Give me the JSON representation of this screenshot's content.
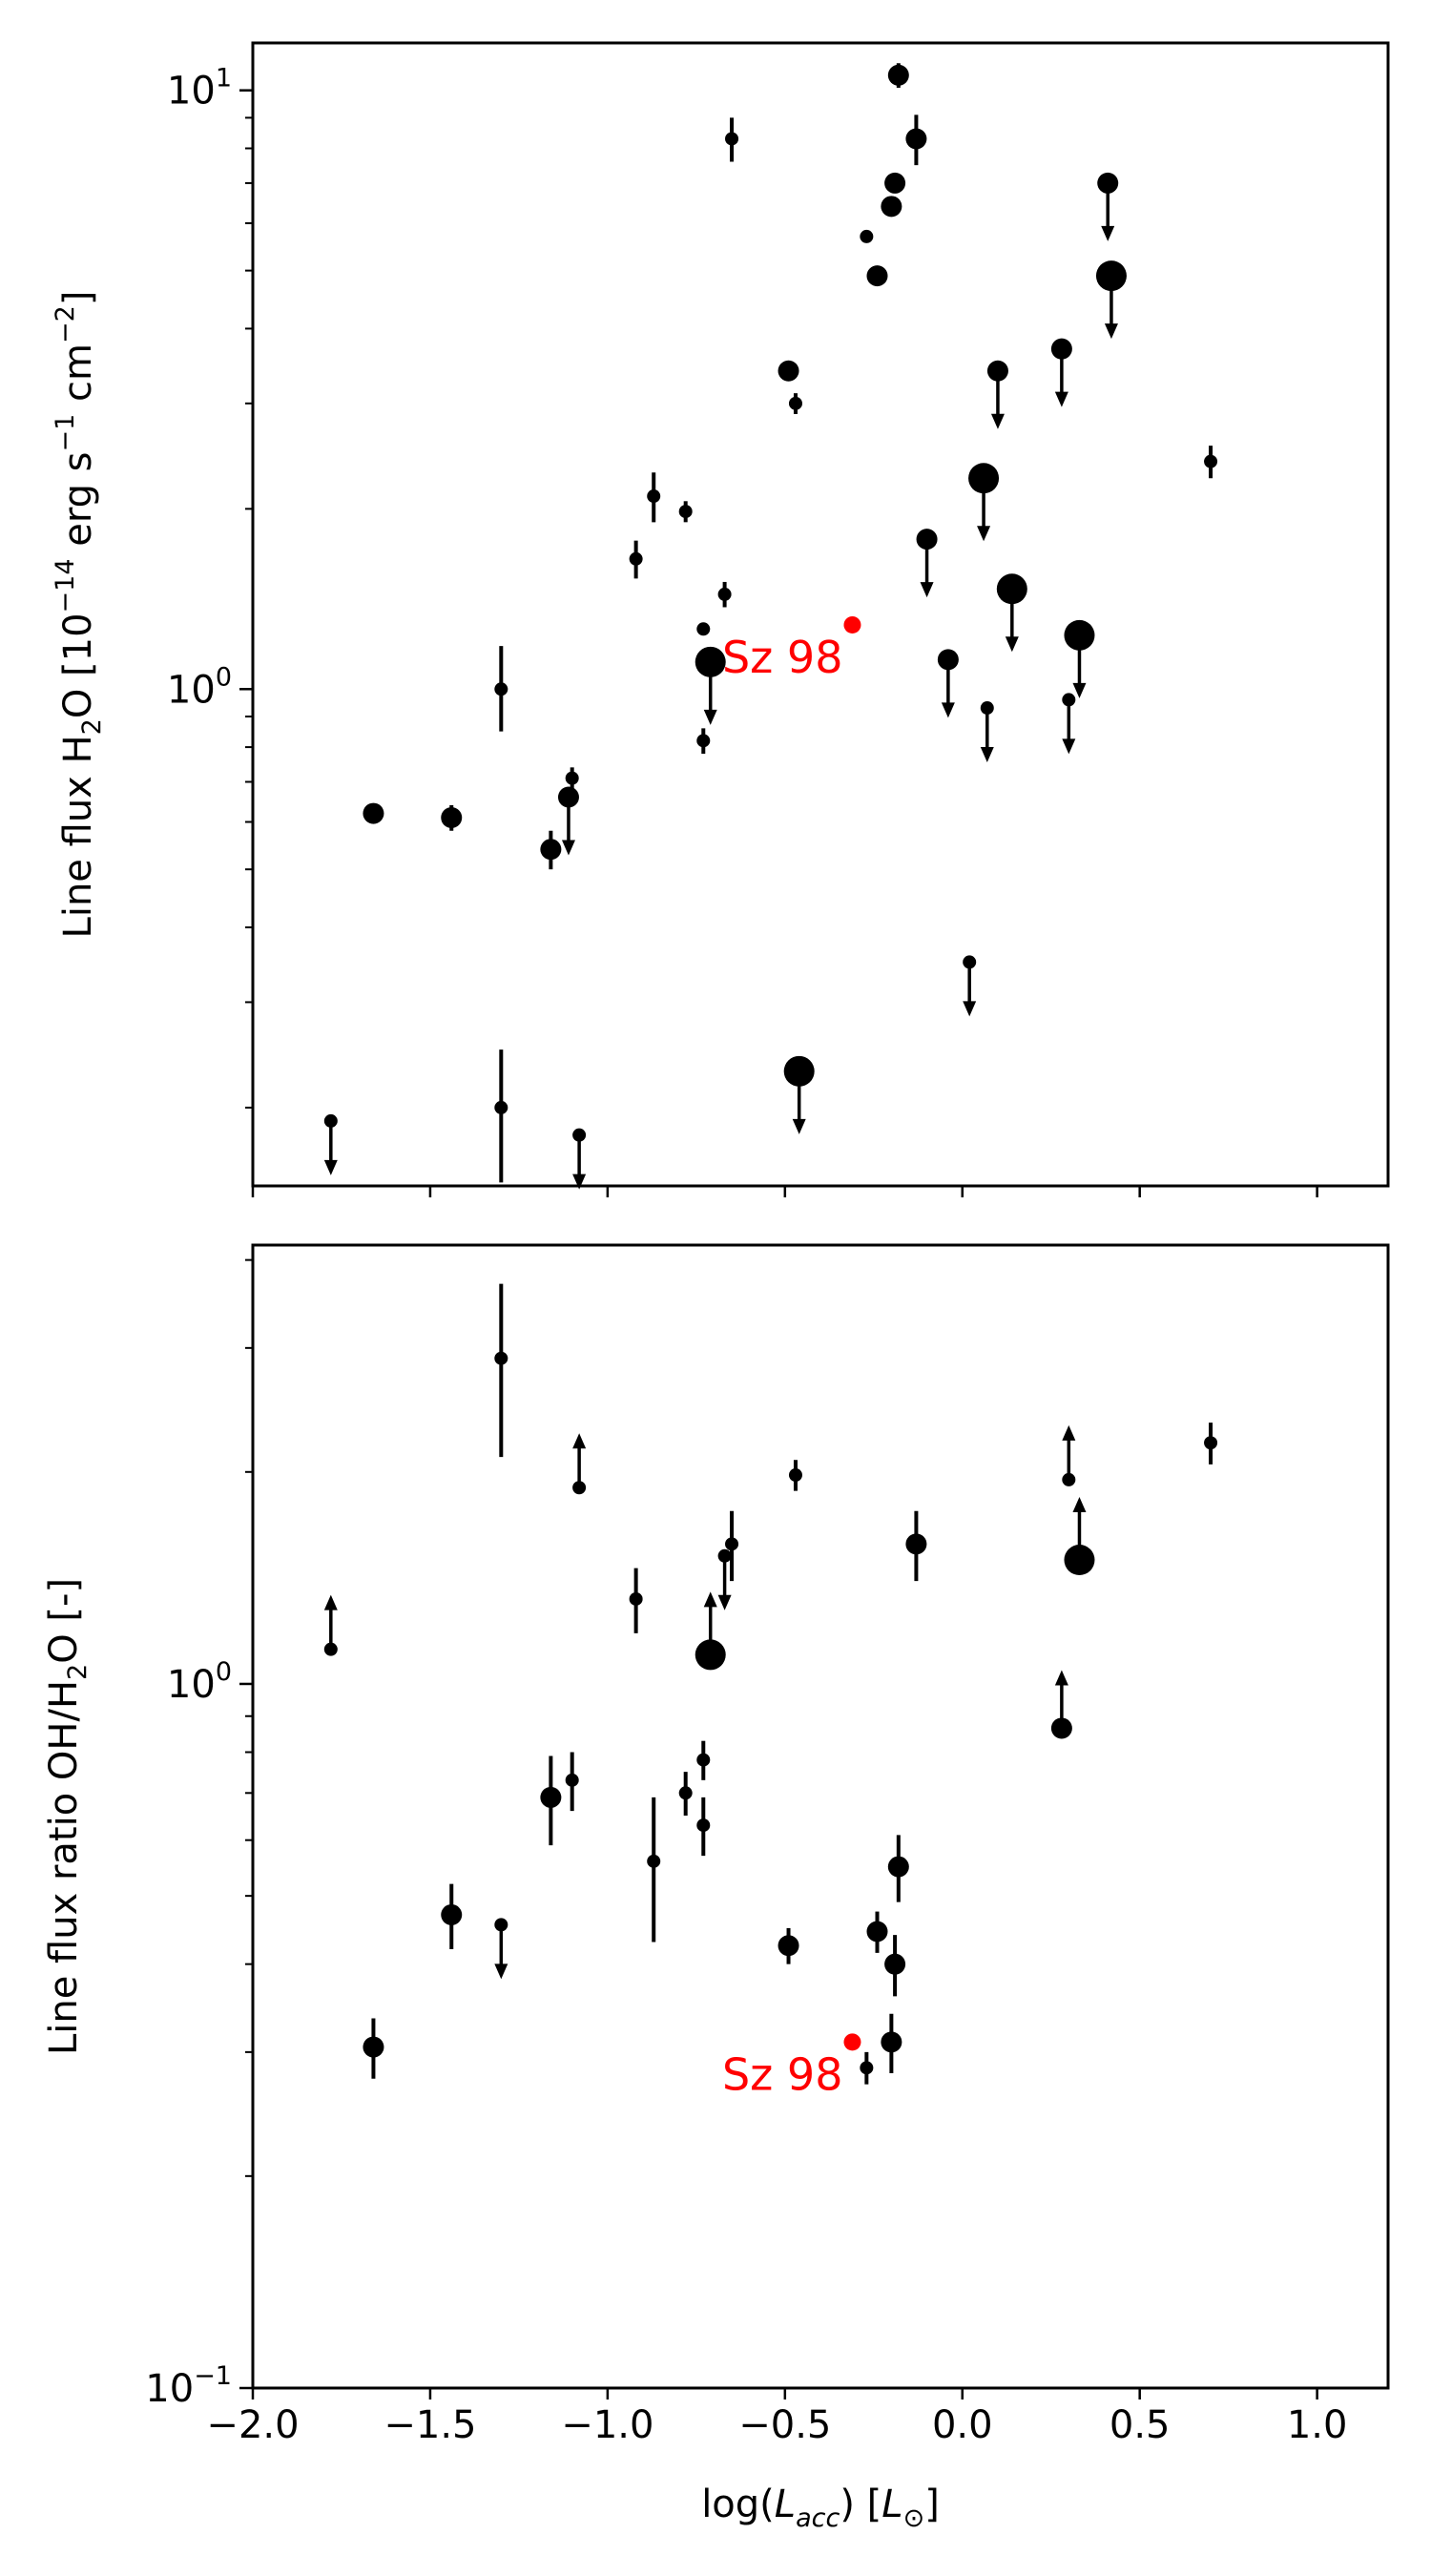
{
  "colors": {
    "points": "#000000",
    "highlight": "#ff0000"
  },
  "chart_data": [
    {
      "type": "scatter",
      "yscale": "log",
      "xlim": [
        -2.0,
        1.2
      ],
      "ylim": [
        0.148,
        12.0
      ],
      "yticks": [
        {
          "value": 1,
          "base": "10",
          "exp": "0"
        },
        {
          "value": 10,
          "base": "10",
          "exp": "1"
        }
      ],
      "ylabel": {
        "pre": "Line flux H",
        "sub": "2",
        "mid": "O [10",
        "exp": "−14",
        "rest": " erg s",
        "exp2": "−1",
        "rest2": " cm",
        "exp3": "−2",
        "post": "]"
      },
      "marker_size_encoding": "marker size varies per source",
      "points": [
        {
          "x": -1.78,
          "y": 0.19,
          "s": 1,
          "lim": "upper"
        },
        {
          "x": -1.66,
          "y": 0.62,
          "s": 2
        },
        {
          "x": -1.44,
          "y": 0.61,
          "s": 2,
          "err": [
            0.03,
            0.03
          ]
        },
        {
          "x": -1.3,
          "y": 1.0,
          "s": 1,
          "err": [
            0.15,
            0.18
          ]
        },
        {
          "x": -1.3,
          "y": 0.2,
          "s": 1,
          "err": [
            0.05,
            0.05
          ]
        },
        {
          "x": -1.16,
          "y": 0.54,
          "s": 2,
          "err": [
            0.04,
            0.04
          ]
        },
        {
          "x": -1.1,
          "y": 0.71,
          "s": 1,
          "err": [
            0.03,
            0.03
          ]
        },
        {
          "x": -1.11,
          "y": 0.66,
          "s": 2,
          "lim": "upper"
        },
        {
          "x": -1.08,
          "y": 0.18,
          "s": 1,
          "lim": "upper"
        },
        {
          "x": -0.92,
          "y": 1.65,
          "s": 1,
          "err": [
            0.12,
            0.12
          ]
        },
        {
          "x": -0.87,
          "y": 2.1,
          "s": 1,
          "err": [
            0.2,
            0.2
          ]
        },
        {
          "x": -0.78,
          "y": 1.98,
          "s": 1,
          "err": [
            0.08,
            0.08
          ]
        },
        {
          "x": -0.73,
          "y": 1.26,
          "s": 1
        },
        {
          "x": -0.73,
          "y": 0.82,
          "s": 1,
          "err": [
            0.04,
            0.04
          ]
        },
        {
          "x": -0.67,
          "y": 1.44,
          "s": 1,
          "err": [
            0.07,
            0.07
          ]
        },
        {
          "x": -0.71,
          "y": 1.11,
          "s": 3,
          "lim": "upper"
        },
        {
          "x": -0.65,
          "y": 8.3,
          "s": 1,
          "err": [
            0.7,
            0.7
          ]
        },
        {
          "x": -0.49,
          "y": 3.4,
          "s": 2
        },
        {
          "x": -0.47,
          "y": 3.0,
          "s": 1,
          "err": [
            0.12,
            0.12
          ]
        },
        {
          "x": -0.46,
          "y": 0.23,
          "s": 3,
          "lim": "upper"
        },
        {
          "x": -0.27,
          "y": 5.7,
          "s": 1
        },
        {
          "x": -0.24,
          "y": 4.9,
          "s": 2
        },
        {
          "x": -0.2,
          "y": 6.4,
          "s": 2
        },
        {
          "x": -0.19,
          "y": 7.0,
          "s": 2
        },
        {
          "x": -0.18,
          "y": 10.6,
          "s": 2,
          "err": [
            0.5,
            0.5
          ]
        },
        {
          "x": -0.13,
          "y": 8.3,
          "s": 2,
          "err": [
            0.8,
            0.8
          ]
        },
        {
          "x": -0.1,
          "y": 1.78,
          "s": 2,
          "lim": "upper"
        },
        {
          "x": -0.04,
          "y": 1.12,
          "s": 2,
          "lim": "upper"
        },
        {
          "x": 0.02,
          "y": 0.35,
          "s": 1,
          "lim": "upper"
        },
        {
          "x": 0.06,
          "y": 2.25,
          "s": 3,
          "lim": "upper"
        },
        {
          "x": 0.07,
          "y": 0.93,
          "s": 1,
          "lim": "upper"
        },
        {
          "x": 0.1,
          "y": 3.4,
          "s": 2,
          "lim": "upper"
        },
        {
          "x": 0.14,
          "y": 1.47,
          "s": 3,
          "lim": "upper"
        },
        {
          "x": 0.28,
          "y": 3.7,
          "s": 2,
          "lim": "upper"
        },
        {
          "x": 0.3,
          "y": 0.96,
          "s": 1,
          "lim": "upper"
        },
        {
          "x": 0.33,
          "y": 1.23,
          "s": 3,
          "lim": "upper"
        },
        {
          "x": 0.41,
          "y": 7.0,
          "s": 2,
          "lim": "upper"
        },
        {
          "x": 0.42,
          "y": 4.9,
          "s": 3,
          "lim": "upper"
        },
        {
          "x": 0.7,
          "y": 2.4,
          "s": 1,
          "err": [
            0.15,
            0.15
          ]
        }
      ],
      "highlight": {
        "x": -0.31,
        "y": 1.28,
        "label": "Sz 98"
      }
    },
    {
      "type": "scatter",
      "yscale": "log",
      "xlim": [
        -2.0,
        1.2
      ],
      "ylim": [
        0.1,
        4.2
      ],
      "xticks": [
        "−2.0",
        "−1.5",
        "−1.0",
        "−0.5",
        "0.0",
        "0.5",
        "1.0"
      ],
      "xtick_values": [
        -2.0,
        -1.5,
        -1.0,
        -0.5,
        0.0,
        0.5,
        1.0
      ],
      "yticks": [
        {
          "value": 0.1,
          "base": "10",
          "exp": "−1"
        },
        {
          "value": 1,
          "base": "10",
          "exp": "0"
        }
      ],
      "xlabel": {
        "pre": "log(",
        "var": "L",
        "sub": "acc",
        "mid": ") [",
        "var2": "L",
        "sub2": "⊙",
        "post": "]"
      },
      "ylabel": {
        "pre": "Line flux ratio OH/H",
        "sub": "2",
        "post": "O [-]"
      },
      "points": [
        {
          "x": -1.78,
          "y": 1.12,
          "s": 1,
          "lim": "lower"
        },
        {
          "x": -1.66,
          "y": 0.305,
          "s": 2,
          "err": [
            0.03,
            0.03
          ]
        },
        {
          "x": -1.44,
          "y": 0.47,
          "s": 2,
          "err": [
            0.05,
            0.05
          ]
        },
        {
          "x": -1.3,
          "y": 2.9,
          "s": 1,
          "err": [
            0.8,
            0.8
          ]
        },
        {
          "x": -1.3,
          "y": 0.455,
          "s": 1,
          "lim": "upper"
        },
        {
          "x": -1.16,
          "y": 0.69,
          "s": 2,
          "err": [
            0.1,
            0.1
          ]
        },
        {
          "x": -1.1,
          "y": 0.73,
          "s": 1,
          "err": [
            0.07,
            0.07
          ]
        },
        {
          "x": -1.08,
          "y": 1.9,
          "s": 1,
          "lim": "lower"
        },
        {
          "x": -0.92,
          "y": 1.32,
          "s": 1,
          "err": [
            0.14,
            0.14
          ]
        },
        {
          "x": -0.87,
          "y": 0.56,
          "s": 1,
          "err": [
            0.13,
            0.13
          ]
        },
        {
          "x": -0.78,
          "y": 0.7,
          "s": 1,
          "err": [
            0.05,
            0.05
          ]
        },
        {
          "x": -0.73,
          "y": 0.78,
          "s": 1,
          "err": [
            0.05,
            0.05
          ]
        },
        {
          "x": -0.73,
          "y": 0.63,
          "s": 1,
          "err": [
            0.06,
            0.06
          ]
        },
        {
          "x": -0.71,
          "y": 1.1,
          "s": 3,
          "lim": "lower"
        },
        {
          "x": -0.67,
          "y": 1.52,
          "s": 1,
          "lim": "upper"
        },
        {
          "x": -0.65,
          "y": 1.58,
          "s": 1,
          "err": [
            0.18,
            0.18
          ]
        },
        {
          "x": -0.49,
          "y": 0.425,
          "s": 2,
          "err": [
            0.025,
            0.025
          ]
        },
        {
          "x": -0.47,
          "y": 1.98,
          "s": 1,
          "err": [
            0.1,
            0.1
          ]
        },
        {
          "x": -0.27,
          "y": 0.285,
          "s": 1,
          "err": [
            0.015,
            0.015
          ]
        },
        {
          "x": -0.24,
          "y": 0.445,
          "s": 2,
          "err": [
            0.03,
            0.03
          ]
        },
        {
          "x": -0.2,
          "y": 0.31,
          "s": 2,
          "err": [
            0.03,
            0.03
          ]
        },
        {
          "x": -0.19,
          "y": 0.4,
          "s": 2,
          "err": [
            0.04,
            0.04
          ]
        },
        {
          "x": -0.18,
          "y": 0.55,
          "s": 2,
          "err": [
            0.06,
            0.06
          ]
        },
        {
          "x": -0.13,
          "y": 1.58,
          "s": 2,
          "err": [
            0.18,
            0.18
          ]
        },
        {
          "x": 0.28,
          "y": 0.865,
          "s": 2,
          "lim": "lower"
        },
        {
          "x": 0.3,
          "y": 1.95,
          "s": 1,
          "lim": "lower"
        },
        {
          "x": 0.33,
          "y": 1.5,
          "s": 3,
          "lim": "lower"
        },
        {
          "x": 0.7,
          "y": 2.2,
          "s": 1,
          "err": [
            0.15,
            0.15
          ]
        }
      ],
      "highlight": {
        "x": -0.31,
        "y": 0.31,
        "label": "Sz 98"
      }
    }
  ]
}
